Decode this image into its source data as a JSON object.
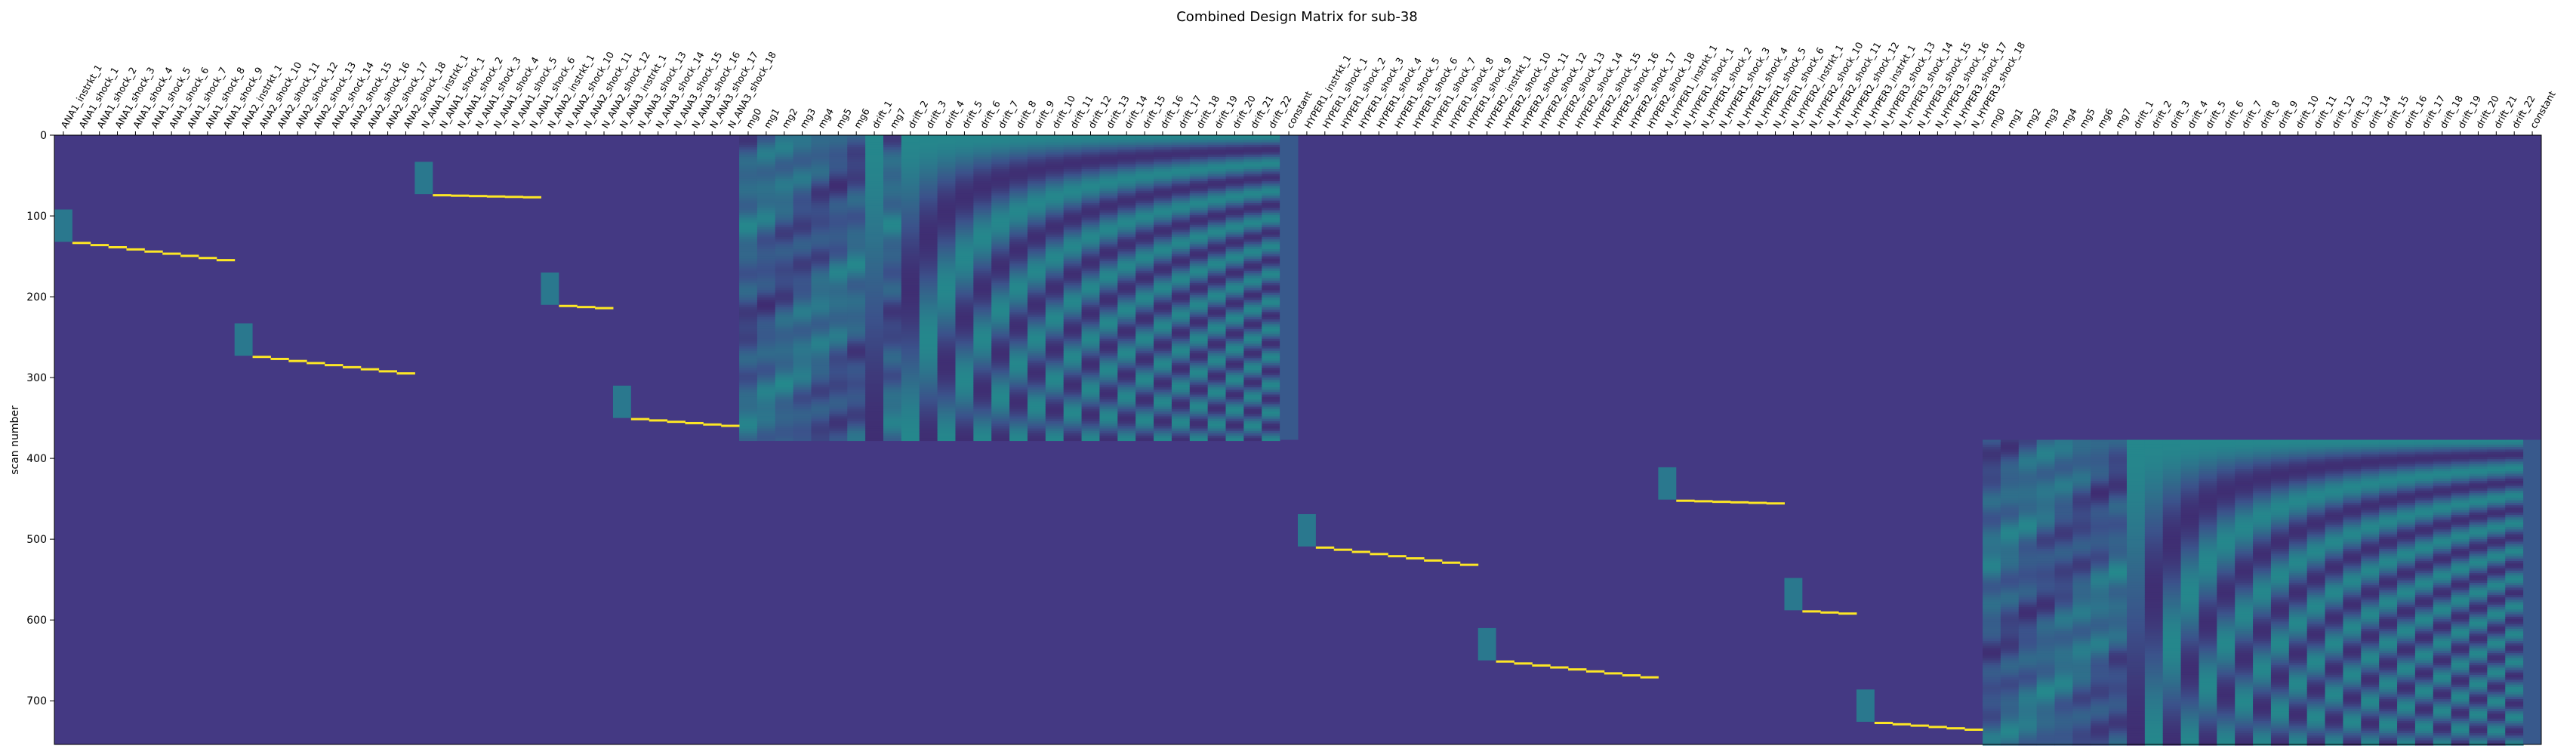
{
  "chart_data": {
    "type": "heatmap",
    "title": "Combined Design Matrix for sub-38",
    "xlabel": "",
    "ylabel": "scan number",
    "ylim": [
      0,
      754
    ],
    "yticks": [
      0,
      100,
      200,
      300,
      400,
      500,
      600,
      700
    ],
    "n_scans": 754,
    "n_runs": 2,
    "run_boundary_scan": 377,
    "colormap": "viridis",
    "colors": {
      "background": "#443983",
      "regressor_event": "#fde725",
      "instruction_block": "#2a788e"
    },
    "x_tick_labels": [
      "ANA1_instrkt_1",
      "ANA1_shock_1",
      "ANA1_shock_2",
      "ANA1_shock_3",
      "ANA1_shock_4",
      "ANA1_shock_5",
      "ANA1_shock_6",
      "ANA1_shock_7",
      "ANA1_shock_8",
      "ANA1_shock_9",
      "ANA2_instrkt_1",
      "ANA2_shock_10",
      "ANA2_shock_11",
      "ANA2_shock_12",
      "ANA2_shock_13",
      "ANA2_shock_14",
      "ANA2_shock_15",
      "ANA2_shock_16",
      "ANA2_shock_17",
      "ANA2_shock_18",
      "N_ANA1_instrkt_1",
      "N_ANA1_shock_1",
      "N_ANA1_shock_2",
      "N_ANA1_shock_3",
      "N_ANA1_shock_4",
      "N_ANA1_shock_5",
      "N_ANA1_shock_6",
      "N_ANA2_instrkt_1",
      "N_ANA2_shock_10",
      "N_ANA2_shock_11",
      "N_ANA2_shock_12",
      "N_ANA3_instrkt_1",
      "N_ANA3_shock_13",
      "N_ANA3_shock_14",
      "N_ANA3_shock_15",
      "N_ANA3_shock_16",
      "N_ANA3_shock_17",
      "N_ANA3_shock_18",
      "mg0",
      "mg1",
      "mg2",
      "mg3",
      "mg4",
      "mg5",
      "mg6",
      "drift_1",
      "mg7",
      "drift_2",
      "drift_3",
      "drift_4",
      "drift_5",
      "drift_6",
      "drift_7",
      "drift_8",
      "drift_9",
      "drift_10",
      "drift_11",
      "drift_12",
      "drift_13",
      "drift_14",
      "drift_15",
      "drift_16",
      "drift_17",
      "drift_18",
      "drift_19",
      "drift_20",
      "drift_21",
      "drift_22",
      "constant",
      "HYPER1_instrkt_1",
      "HYPER1_shock_1",
      "HYPER1_shock_2",
      "HYPER1_shock_3",
      "HYPER1_shock_4",
      "HYPER1_shock_5",
      "HYPER1_shock_6",
      "HYPER1_shock_7",
      "HYPER1_shock_8",
      "HYPER1_shock_9",
      "HYPER2_instrkt_1",
      "HYPER2_shock_10",
      "HYPER2_shock_11",
      "HYPER2_shock_12",
      "HYPER2_shock_13",
      "HYPER2_shock_14",
      "HYPER2_shock_15",
      "HYPER2_shock_16",
      "HYPER2_shock_17",
      "HYPER2_shock_18",
      "N_HYPER1_instrkt_1",
      "N_HYPER1_shock_1",
      "N_HYPER1_shock_2",
      "N_HYPER1_shock_3",
      "N_HYPER1_shock_4",
      "N_HYPER1_shock_5",
      "N_HYPER1_shock_6",
      "N_HYPER2_instrkt_1",
      "N_HYPER2_shock_10",
      "N_HYPER2_shock_11",
      "N_HYPER2_shock_12",
      "N_HYPER3_instrkt_1",
      "N_HYPER3_shock_13",
      "N_HYPER3_shock_14",
      "N_HYPER3_shock_15",
      "N_HYPER3_shock_16",
      "N_HYPER3_shock_17",
      "N_HYPER3_shock_18",
      "mg0",
      "mg1",
      "mg2",
      "mg3",
      "mg4",
      "mg5",
      "mg6",
      "mg7",
      "drift_1",
      "drift_2",
      "drift_3",
      "drift_4",
      "drift_5",
      "drift_6",
      "drift_7",
      "drift_8",
      "drift_9",
      "drift_10",
      "drift_11",
      "drift_12",
      "drift_13",
      "drift_14",
      "drift_15",
      "drift_16",
      "drift_17",
      "drift_18",
      "drift_19",
      "drift_20",
      "drift_21",
      "drift_22",
      "constant"
    ],
    "event_blocks": [
      {
        "col_start": 0,
        "count": 10,
        "scan_start": 92,
        "scan_end": 156
      },
      {
        "col_start": 10,
        "count": 10,
        "scan_start": 233,
        "scan_end": 296
      },
      {
        "col_start": 20,
        "count": 7,
        "scan_start": 33,
        "scan_end": 76
      },
      {
        "col_start": 27,
        "count": 4,
        "scan_start": 170,
        "scan_end": 214
      },
      {
        "col_start": 31,
        "count": 7,
        "scan_start": 310,
        "scan_end": 360
      },
      {
        "col_start": 69,
        "count": 10,
        "scan_start": 469,
        "scan_end": 533
      },
      {
        "col_start": 79,
        "count": 10,
        "scan_start": 610,
        "scan_end": 672
      },
      {
        "col_start": 89,
        "count": 7,
        "scan_start": 411,
        "scan_end": 455
      },
      {
        "col_start": 96,
        "count": 4,
        "scan_start": 548,
        "scan_end": 592
      },
      {
        "col_start": 100,
        "count": 7,
        "scan_start": 686,
        "scan_end": 736
      }
    ],
    "nuisance_blocks": [
      {
        "col_start": 38,
        "col_end": 69,
        "scan_start": 0,
        "scan_end": 377
      },
      {
        "col_start": 107,
        "col_end": 138,
        "scan_start": 377,
        "scan_end": 754
      }
    ]
  }
}
